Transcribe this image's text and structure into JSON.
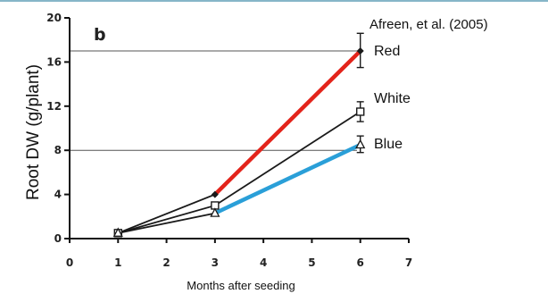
{
  "citation": "Afreen, et al. (2005)",
  "panel_letter": "b",
  "chart_data": {
    "type": "line",
    "xlabel": "Months after seeding",
    "ylabel": "Root DW (g/plant)",
    "xlim": [
      0,
      7
    ],
    "ylim": [
      0,
      20
    ],
    "x_ticks": [
      0,
      1,
      2,
      3,
      4,
      5,
      6,
      7
    ],
    "y_ticks": [
      0,
      4,
      8,
      12,
      16,
      20
    ],
    "reference_lines": [
      8,
      17
    ],
    "series": [
      {
        "name": "Red",
        "color": "#e3241b",
        "marker": "filled-diamond",
        "original_points": {
          "x": [
            1,
            3,
            6
          ],
          "y": [
            0.5,
            4,
            17
          ]
        },
        "overlay_points": {
          "x": [
            3,
            6
          ],
          "y": [
            4,
            17
          ]
        },
        "error_bar": {
          "x": 6,
          "low": 15.5,
          "high": 18.6
        }
      },
      {
        "name": "White",
        "color": "#1a1a1a",
        "marker": "open-square",
        "original_points": {
          "x": [
            1,
            3,
            6
          ],
          "y": [
            0.5,
            3,
            11.5
          ]
        },
        "error_bar": {
          "x": 6,
          "low": 10.6,
          "high": 12.4
        }
      },
      {
        "name": "Blue",
        "color": "#2a9fd8",
        "marker": "open-triangle",
        "original_points": {
          "x": [
            1,
            3,
            6
          ],
          "y": [
            0.5,
            2.3,
            8.5
          ]
        },
        "overlay_points": {
          "x": [
            3,
            6
          ],
          "y": [
            2.3,
            8.5
          ]
        },
        "error_bar": {
          "x": 6,
          "low": 7.8,
          "high": 9.3
        }
      }
    ]
  }
}
